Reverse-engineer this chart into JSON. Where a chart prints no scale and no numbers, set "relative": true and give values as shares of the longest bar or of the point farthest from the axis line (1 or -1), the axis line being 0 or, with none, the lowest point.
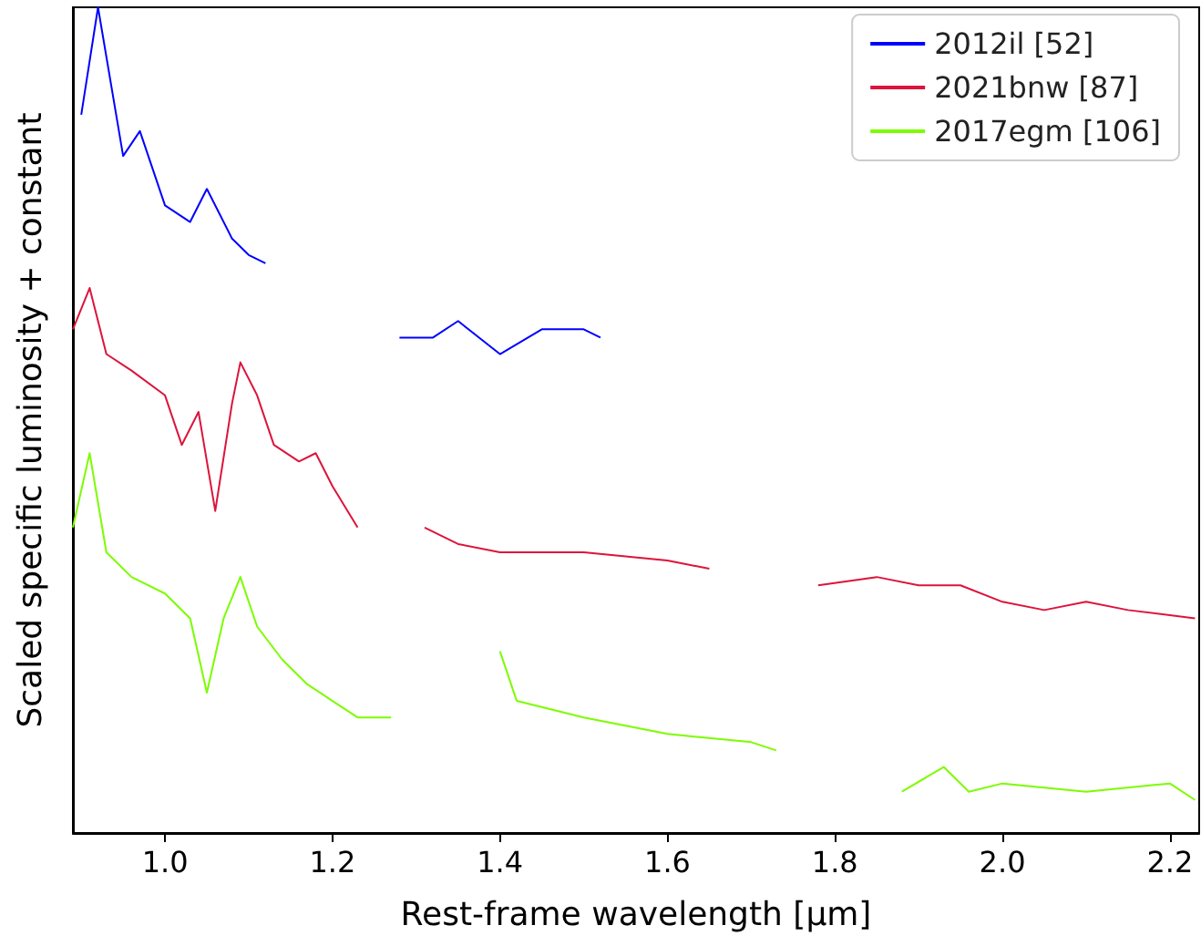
{
  "chart_data": {
    "type": "line",
    "relative": true,
    "xlabel": "Rest-frame wavelength [µm]",
    "ylabel": "Scaled specific luminosity + constant",
    "xlim": [
      0.89,
      2.235
    ],
    "xticks": [
      {
        "value": 1,
        "label": "1.0"
      },
      {
        "value": 1.2,
        "label": "1.2"
      },
      {
        "value": 1.4,
        "label": "1.4"
      },
      {
        "value": 1.6,
        "label": "1.6"
      },
      {
        "value": 1.8,
        "label": "1.8"
      },
      {
        "value": 2,
        "label": "2.0"
      },
      {
        "value": 2.2,
        "label": "2.2"
      }
    ],
    "tick_labels": "x",
    "legend": "top right",
    "marker": "none",
    "line_style": "solid",
    "series": [
      {
        "name": "2012il [52]",
        "color": "#0000ff",
        "x": [
          0.9,
          0.92,
          0.95,
          0.97,
          1.0,
          1.03,
          1.05,
          1.08,
          1.1,
          1.12,
          1.2,
          1.28,
          1.32,
          1.35,
          1.4,
          1.45,
          1.5,
          1.52
        ],
        "values": [
          0.87,
          1,
          0.82,
          0.85,
          0.76,
          0.74,
          0.78,
          0.72,
          0.7,
          0.69,
          null,
          0.6,
          0.6,
          0.62,
          0.58,
          0.61,
          0.61,
          0.6
        ]
      },
      {
        "name": "2021bnw [87]",
        "color": "#dc143c",
        "x": [
          0.89,
          0.91,
          0.93,
          0.96,
          1.0,
          1.02,
          1.04,
          1.06,
          1.08,
          1.09,
          1.11,
          1.13,
          1.16,
          1.18,
          1.2,
          1.23,
          1.27,
          1.31,
          1.35,
          1.4,
          1.5,
          1.6,
          1.65,
          1.7,
          1.78,
          1.85,
          1.9,
          1.95,
          2.0,
          2.05,
          2.1,
          2.15,
          2.23
        ],
        "values": [
          0.61,
          0.66,
          0.58,
          0.56,
          0.53,
          0.47,
          0.51,
          0.39,
          0.52,
          0.57,
          0.53,
          0.47,
          0.45,
          0.46,
          0.42,
          0.37,
          null,
          0.37,
          0.35,
          0.34,
          0.34,
          0.33,
          0.32,
          null,
          0.3,
          0.31,
          0.3,
          0.3,
          0.28,
          0.27,
          0.28,
          0.27,
          0.26
        ]
      },
      {
        "name": "2017egm [106]",
        "color": "#7cfc00",
        "x": [
          0.89,
          0.91,
          0.93,
          0.96,
          1.0,
          1.03,
          1.05,
          1.07,
          1.09,
          1.11,
          1.14,
          1.17,
          1.2,
          1.23,
          1.27,
          1.33,
          1.4,
          1.42,
          1.5,
          1.6,
          1.7,
          1.73,
          1.8,
          1.88,
          1.93,
          1.96,
          2.0,
          2.1,
          2.2,
          2.23
        ],
        "values": [
          0.37,
          0.46,
          0.34,
          0.31,
          0.29,
          0.26,
          0.17,
          0.26,
          0.31,
          0.25,
          0.21,
          0.18,
          0.16,
          0.14,
          0.14,
          null,
          0.22,
          0.16,
          0.14,
          0.12,
          0.11,
          0.1,
          null,
          0.05,
          0.08,
          0.05,
          0.06,
          0.05,
          0.06,
          0.04
        ]
      }
    ]
  }
}
